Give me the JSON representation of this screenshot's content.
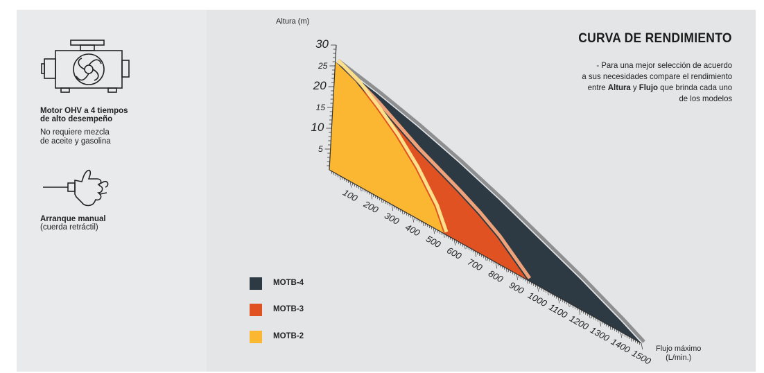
{
  "features": [
    {
      "icon": "engine-icon",
      "title_line1": "Motor OHV a 4 tiempos",
      "title_line2": "de alto desempeño",
      "desc_line1": "No requiere mezcla",
      "desc_line2": "de aceite y gasolina"
    },
    {
      "icon": "pull-start-icon",
      "title_line1": "Arranque manual",
      "desc_line1": "(cuerda retráctil)"
    }
  ],
  "header": {
    "title": "CURVA DE RENDIMIENTO",
    "desc_line1": "- Para una mejor selección de acuerdo",
    "desc_line2": "a sus necesidades compare el rendimiento",
    "desc_line3_pre": "entre ",
    "desc_line3_b1": "Altura",
    "desc_line3_mid": " y ",
    "desc_line3_b2": "Flujo",
    "desc_line3_post": " que brinda cada uno",
    "desc_line4": "de los modelos"
  },
  "chart_data": {
    "type": "area",
    "title": "CURVA DE RENDIMIENTO",
    "ylabel": "Altura (m)",
    "xlabel_line1": "Flujo máximo",
    "xlabel_line2": "(L/min.)",
    "y_ticks": [
      "5",
      "10",
      "15",
      "20",
      "25",
      "30"
    ],
    "x_ticks": [
      "100",
      "200",
      "300",
      "400",
      "500",
      "600",
      "700",
      "800",
      "900",
      "1000",
      "1100",
      "1200",
      "1300",
      "1400",
      "1500"
    ],
    "ylim": [
      0,
      30
    ],
    "xlim": [
      0,
      1500
    ],
    "series": [
      {
        "name": "MOTB-4",
        "color": "#2e3a43",
        "x": [
          0,
          200,
          400,
          600,
          800,
          1000,
          1200,
          1400,
          1500
        ],
        "y": [
          26,
          24,
          21.5,
          18.5,
          15,
          11,
          7,
          2.5,
          0
        ]
      },
      {
        "name": "MOTB-3",
        "color": "#e05222",
        "x": [
          0,
          200,
          400,
          600,
          700,
          800,
          900,
          950
        ],
        "y": [
          26,
          21.5,
          16,
          11.5,
          9,
          6,
          2,
          0
        ]
      },
      {
        "name": "MOTB-2",
        "color": "#fbb731",
        "x": [
          0,
          100,
          200,
          300,
          400,
          500,
          550
        ],
        "y": [
          26,
          24,
          20.5,
          16.5,
          11.5,
          5,
          0
        ]
      }
    ]
  }
}
